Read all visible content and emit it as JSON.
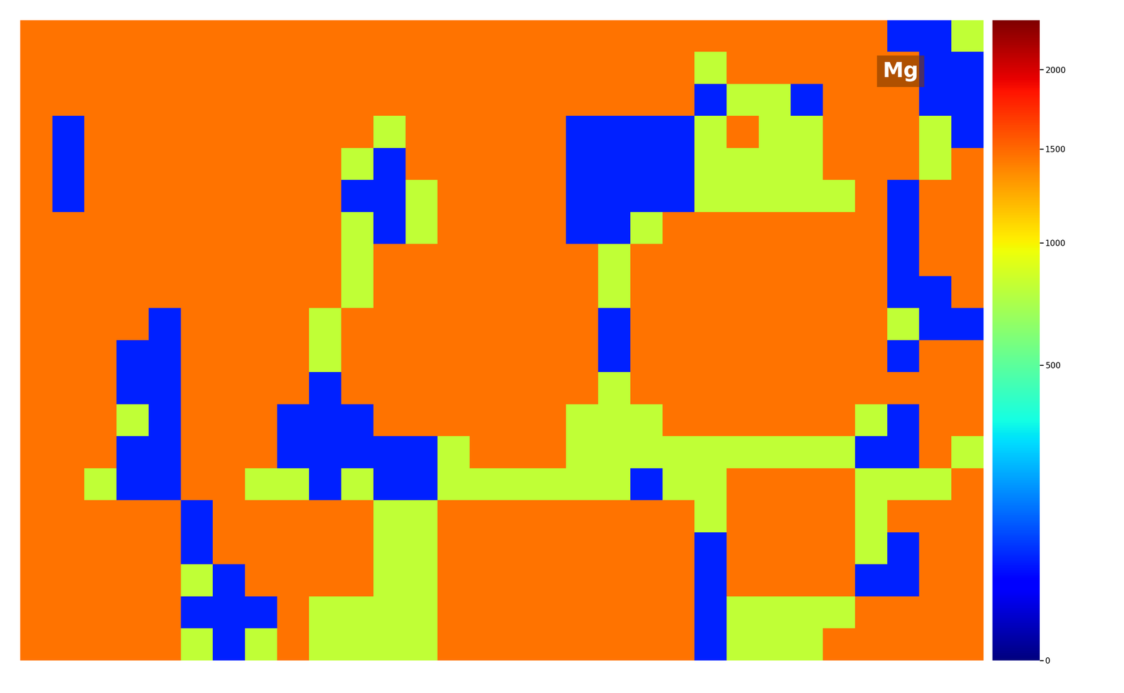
{
  "chart_data": {
    "type": "heatmap",
    "label": "Mg",
    "color": "jet",
    "colorbar_range": [
      0,
      2350
    ],
    "colorbar_ticks": [
      0,
      500,
      1000,
      1500,
      2000
    ],
    "cells": [
      [
        1450,
        1450,
        1450,
        1450,
        1450,
        1450,
        1450,
        1450,
        1450,
        1450,
        1450,
        1450,
        1450,
        1450,
        1450,
        1450,
        1450,
        1450,
        1450,
        1450,
        1450,
        1450,
        1450,
        1450,
        1450,
        1450,
        1450,
        60,
        60,
        800
      ],
      [
        1450,
        1450,
        1450,
        1450,
        1450,
        1450,
        1450,
        1450,
        1450,
        1450,
        1450,
        1450,
        1450,
        1450,
        1450,
        1450,
        1450,
        1450,
        1450,
        1450,
        1450,
        800,
        1450,
        1450,
        1450,
        1450,
        1450,
        1450,
        60,
        60
      ],
      [
        1450,
        1450,
        1450,
        1450,
        1450,
        1450,
        1450,
        1450,
        1450,
        1450,
        1450,
        1450,
        1450,
        1450,
        1450,
        1450,
        1450,
        1450,
        1450,
        1450,
        1450,
        60,
        800,
        800,
        60,
        1450,
        1450,
        1450,
        60,
        60
      ],
      [
        1450,
        60,
        1450,
        1450,
        1450,
        1450,
        1450,
        1450,
        1450,
        1450,
        1450,
        800,
        1450,
        1450,
        1450,
        1450,
        1450,
        60,
        60,
        60,
        60,
        800,
        1450,
        800,
        800,
        1450,
        1450,
        1450,
        800,
        60
      ],
      [
        1450,
        60,
        1450,
        1450,
        1450,
        1450,
        1450,
        1450,
        1450,
        1450,
        800,
        60,
        1450,
        1450,
        1450,
        1450,
        1450,
        60,
        60,
        60,
        60,
        800,
        800,
        800,
        800,
        1450,
        1450,
        1450,
        800,
        1450
      ],
      [
        1450,
        60,
        1450,
        1450,
        1450,
        1450,
        1450,
        1450,
        1450,
        1450,
        60,
        60,
        800,
        1450,
        1450,
        1450,
        1450,
        60,
        60,
        60,
        60,
        800,
        800,
        800,
        800,
        800,
        1450,
        60,
        1450,
        1450
      ],
      [
        1450,
        1450,
        1450,
        1450,
        1450,
        1450,
        1450,
        1450,
        1450,
        1450,
        800,
        60,
        800,
        1450,
        1450,
        1450,
        1450,
        60,
        60,
        800,
        1450,
        1450,
        1450,
        1450,
        1450,
        1450,
        1450,
        60,
        1450,
        1450
      ],
      [
        1450,
        1450,
        1450,
        1450,
        1450,
        1450,
        1450,
        1450,
        1450,
        1450,
        800,
        1450,
        1450,
        1450,
        1450,
        1450,
        1450,
        1450,
        800,
        1450,
        1450,
        1450,
        1450,
        1450,
        1450,
        1450,
        1450,
        60,
        1450,
        1450
      ],
      [
        1450,
        1450,
        1450,
        1450,
        1450,
        1450,
        1450,
        1450,
        1450,
        1450,
        800,
        1450,
        1450,
        1450,
        1450,
        1450,
        1450,
        1450,
        800,
        1450,
        1450,
        1450,
        1450,
        1450,
        1450,
        1450,
        1450,
        60,
        60,
        1450
      ],
      [
        1450,
        1450,
        1450,
        1450,
        60,
        1450,
        1450,
        1450,
        1450,
        800,
        1450,
        1450,
        1450,
        1450,
        1450,
        1450,
        1450,
        1450,
        60,
        1450,
        1450,
        1450,
        1450,
        1450,
        1450,
        1450,
        1450,
        800,
        60,
        60
      ],
      [
        1450,
        1450,
        1450,
        60,
        60,
        1450,
        1450,
        1450,
        1450,
        800,
        1450,
        1450,
        1450,
        1450,
        1450,
        1450,
        1450,
        1450,
        60,
        1450,
        1450,
        1450,
        1450,
        1450,
        1450,
        1450,
        1450,
        60,
        1450,
        1450
      ],
      [
        1450,
        1450,
        1450,
        60,
        60,
        1450,
        1450,
        1450,
        1450,
        60,
        1450,
        1450,
        1450,
        1450,
        1450,
        1450,
        1450,
        1450,
        800,
        1450,
        1450,
        1450,
        1450,
        1450,
        1450,
        1450,
        1450,
        1450,
        1450,
        1450
      ],
      [
        1450,
        1450,
        1450,
        800,
        60,
        1450,
        1450,
        1450,
        60,
        60,
        60,
        1450,
        1450,
        1450,
        1450,
        1450,
        1450,
        800,
        800,
        800,
        1450,
        1450,
        1450,
        1450,
        1450,
        1450,
        800,
        60,
        1450,
        1450
      ],
      [
        1450,
        1450,
        1450,
        60,
        60,
        1450,
        1450,
        1450,
        60,
        60,
        60,
        60,
        60,
        800,
        1450,
        1450,
        1450,
        800,
        800,
        800,
        800,
        800,
        800,
        800,
        800,
        800,
        60,
        60,
        1450,
        800
      ],
      [
        1450,
        1450,
        800,
        60,
        60,
        1450,
        1450,
        800,
        800,
        60,
        800,
        60,
        60,
        800,
        800,
        800,
        800,
        800,
        800,
        60,
        800,
        800,
        1450,
        1450,
        1450,
        1450,
        800,
        800,
        800,
        1450
      ],
      [
        1450,
        1450,
        1450,
        1450,
        1450,
        60,
        1450,
        1450,
        1450,
        1450,
        1450,
        800,
        800,
        1450,
        1450,
        1450,
        1450,
        1450,
        1450,
        1450,
        1450,
        800,
        1450,
        1450,
        1450,
        1450,
        800,
        1450,
        1450,
        1450
      ],
      [
        1450,
        1450,
        1450,
        1450,
        1450,
        60,
        1450,
        1450,
        1450,
        1450,
        1450,
        800,
        800,
        1450,
        1450,
        1450,
        1450,
        1450,
        1450,
        1450,
        1450,
        60,
        1450,
        1450,
        1450,
        1450,
        800,
        60,
        1450,
        1450
      ],
      [
        1450,
        1450,
        1450,
        1450,
        1450,
        800,
        60,
        1450,
        1450,
        1450,
        1450,
        800,
        800,
        1450,
        1450,
        1450,
        1450,
        1450,
        1450,
        1450,
        1450,
        60,
        1450,
        1450,
        1450,
        1450,
        60,
        60,
        1450,
        1450
      ],
      [
        1450,
        1450,
        1450,
        1450,
        1450,
        60,
        60,
        60,
        1450,
        800,
        800,
        800,
        800,
        1450,
        1450,
        1450,
        1450,
        1450,
        1450,
        1450,
        1450,
        60,
        800,
        800,
        800,
        800,
        1450,
        1450,
        1450,
        1450
      ],
      [
        1450,
        1450,
        1450,
        1450,
        1450,
        800,
        60,
        800,
        1450,
        800,
        800,
        800,
        800,
        1450,
        1450,
        1450,
        1450,
        1450,
        1450,
        1450,
        1450,
        60,
        800,
        800,
        800,
        1450,
        1450,
        1450,
        1450,
        1450
      ]
    ]
  }
}
